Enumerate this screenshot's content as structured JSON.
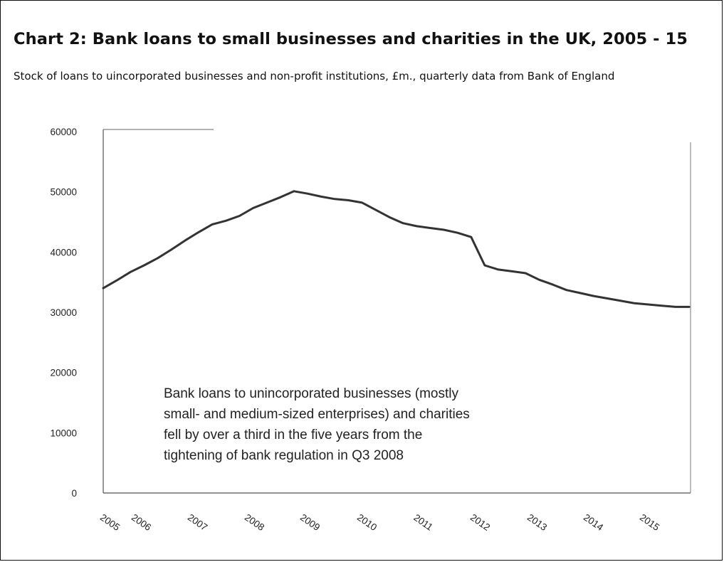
{
  "header": {
    "title": "Chart 2: Bank loans to small businesses and charities in the UK, 2005 - 15",
    "subtitle": "Stock of loans to uincorporated businesses and non-profit institutions, £m., quarterly data from Bank of England"
  },
  "chart_data": {
    "type": "line",
    "title": "Chart 2: Bank loans to small businesses and charities in the UK, 2005 - 15",
    "subtitle": "Stock of loans to uincorporated businesses and non-profit institutions, £m., quarterly data from Bank of England",
    "xlabel": "",
    "ylabel": "",
    "ylim": [
      0,
      60000
    ],
    "yticks": [
      "0",
      "10000",
      "20000",
      "30000",
      "40000",
      "50000",
      "60000"
    ],
    "xtick_labels": [
      "2005",
      "2006",
      "2007",
      "2008",
      "2009",
      "2010",
      "2011",
      "2012",
      "2013",
      "2014",
      "2015"
    ],
    "grid": false,
    "legend": "none",
    "line_color": "#333333",
    "series": [
      {
        "x": [
          "2005 Q1",
          "2005 Q2",
          "2005 Q3",
          "2005 Q4",
          "2006 Q1",
          "2006 Q2",
          "2006 Q3",
          "2006 Q4",
          "2007 Q1",
          "2007 Q2",
          "2007 Q3",
          "2007 Q4",
          "2008 Q1",
          "2008 Q2",
          "2008 Q3",
          "2008 Q4",
          "2009 Q1",
          "2009 Q2",
          "2009 Q3",
          "2009 Q4",
          "2010 Q1",
          "2010 Q2",
          "2010 Q3",
          "2010 Q4",
          "2011 Q1",
          "2011 Q2",
          "2011 Q3",
          "2011 Q4",
          "2012 Q1",
          "2012 Q2",
          "2012 Q3",
          "2012 Q4",
          "2013 Q1",
          "2013 Q2",
          "2013 Q3",
          "2013 Q4",
          "2014 Q1",
          "2014 Q2",
          "2014 Q3",
          "2014 Q4",
          "2015 Q1",
          "2015 Q2",
          "2015 Q3",
          "2015 Q4"
        ],
        "values": [
          34000,
          35300,
          36700,
          37800,
          39000,
          40400,
          41900,
          43300,
          44600,
          45200,
          46000,
          47300,
          48200,
          49100,
          50100,
          49700,
          49200,
          48800,
          48600,
          48200,
          47000,
          45800,
          44800,
          44300,
          44000,
          43700,
          43200,
          42500,
          37800,
          37100,
          36800,
          36500,
          35400,
          34600,
          33700,
          33200,
          32700,
          32300,
          31900,
          31500,
          31300,
          31100,
          30900,
          30900
        ]
      }
    ],
    "annotation": [
      "Bank loans to unincorporated businesses (mostly",
      "small- and medium-sized enterprises) and charities",
      "fell by  over a third in the five years from the",
      "tightening of bank regulation in Q3 2008"
    ]
  }
}
